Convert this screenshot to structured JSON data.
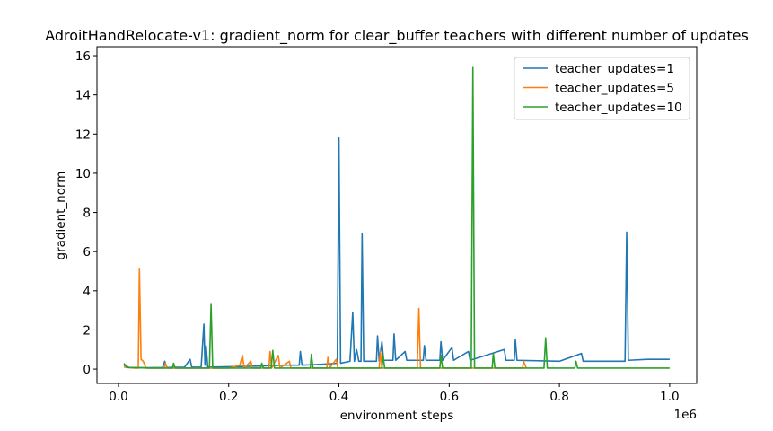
{
  "chart_data": {
    "type": "line",
    "title": "AdroitHandRelocate-v1: gradient_norm for clear_buffer teachers with different number of updates",
    "x_label": "environment steps",
    "y_label": "gradient_norm",
    "x_offset_label": "1e6",
    "xlim": [
      -39000,
      1049000
    ],
    "ylim": [
      -0.73,
      16.46
    ],
    "xticks": [
      {
        "value": 0,
        "label": "0.0"
      },
      {
        "value": 200000,
        "label": "0.2"
      },
      {
        "value": 400000,
        "label": "0.4"
      },
      {
        "value": 600000,
        "label": "0.6"
      },
      {
        "value": 800000,
        "label": "0.8"
      },
      {
        "value": 1000000,
        "label": "1.0"
      }
    ],
    "yticks": [
      0,
      2,
      4,
      6,
      8,
      10,
      12,
      14,
      16
    ],
    "legend": "upper right",
    "series": [
      {
        "name": "teacher_updates=1",
        "color": "#1f77b4",
        "x": [
          10000,
          20000,
          50000,
          80000,
          84000,
          88000,
          120000,
          130000,
          133000,
          150000,
          155000,
          157000,
          159000,
          162000,
          200000,
          250000,
          300000,
          328000,
          330000,
          333000,
          370000,
          397000,
          400000,
          403000,
          420000,
          425000,
          428000,
          432000,
          436000,
          440000,
          442000,
          445000,
          468000,
          470000,
          473000,
          478000,
          481000,
          498000,
          500000,
          503000,
          520000,
          523000,
          553000,
          555000,
          558000,
          583000,
          585000,
          588000,
          605000,
          608000,
          635000,
          638000,
          700000,
          703000,
          718000,
          720000,
          723000,
          800000,
          840000,
          843000,
          919000,
          922000,
          925000,
          960000,
          1000000
        ],
        "values": [
          0.2,
          0.08,
          0.07,
          0.08,
          0.4,
          0.08,
          0.1,
          0.5,
          0.1,
          0.1,
          2.3,
          0.2,
          1.2,
          0.1,
          0.12,
          0.15,
          0.2,
          0.2,
          0.9,
          0.2,
          0.25,
          0.3,
          11.8,
          0.3,
          0.4,
          2.9,
          0.4,
          1.0,
          0.4,
          0.4,
          6.9,
          0.4,
          0.4,
          1.7,
          0.4,
          1.4,
          0.45,
          0.45,
          1.8,
          0.45,
          0.9,
          0.45,
          0.45,
          1.2,
          0.45,
          0.45,
          1.4,
          0.45,
          1.1,
          0.45,
          0.9,
          0.45,
          1.0,
          0.45,
          0.45,
          1.5,
          0.45,
          0.4,
          0.8,
          0.4,
          0.4,
          7.0,
          0.45,
          0.5,
          0.5
        ]
      },
      {
        "name": "teacher_updates=5",
        "color": "#ff7f0e",
        "x": [
          10000,
          30000,
          36000,
          38000,
          41000,
          45000,
          50000,
          83000,
          85000,
          88000,
          200000,
          220000,
          225000,
          228000,
          240000,
          243000,
          273000,
          275000,
          278000,
          290000,
          293000,
          310000,
          313000,
          378000,
          380000,
          383000,
          395000,
          398000,
          473000,
          475000,
          478000,
          542000,
          545000,
          548000,
          650000,
          733000,
          735000,
          740000
        ],
        "values": [
          0.1,
          0.05,
          0.05,
          5.1,
          0.5,
          0.4,
          0.05,
          0.05,
          0.3,
          0.05,
          0.05,
          0.2,
          0.7,
          0.05,
          0.4,
          0.05,
          0.05,
          0.9,
          0.05,
          0.7,
          0.05,
          0.4,
          0.05,
          0.05,
          0.6,
          0.05,
          0.5,
          0.05,
          0.05,
          0.9,
          0.05,
          0.05,
          3.1,
          0.05,
          0.05,
          0.05,
          0.4,
          0.05
        ]
      },
      {
        "name": "teacher_updates=10",
        "color": "#2ca02c",
        "x": [
          10000,
          15000,
          60000,
          98000,
          100000,
          103000,
          165000,
          168000,
          171000,
          258000,
          260000,
          263000,
          277000,
          280000,
          283000,
          348000,
          350000,
          353000,
          478000,
          480000,
          483000,
          583000,
          585000,
          588000,
          640000,
          643000,
          646000,
          678000,
          680000,
          683000,
          772000,
          775000,
          778000,
          828000,
          830000,
          833000,
          900000,
          1000000
        ],
        "values": [
          0.3,
          0.08,
          0.05,
          0.05,
          0.3,
          0.05,
          0.05,
          3.3,
          0.05,
          0.05,
          0.3,
          0.05,
          0.05,
          0.95,
          0.05,
          0.05,
          0.75,
          0.05,
          0.05,
          0.7,
          0.05,
          0.05,
          0.7,
          0.05,
          0.05,
          15.4,
          0.05,
          0.05,
          0.8,
          0.05,
          0.05,
          1.6,
          0.05,
          0.05,
          0.4,
          0.05,
          0.05,
          0.05
        ]
      }
    ]
  }
}
